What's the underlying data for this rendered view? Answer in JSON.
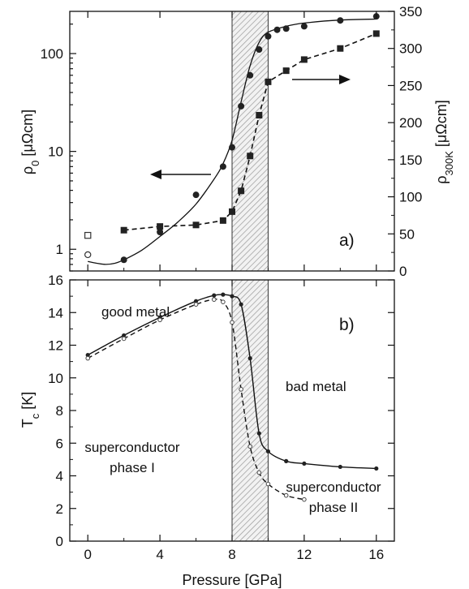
{
  "chart_data": [
    {
      "panel": "a)",
      "type": "scatter",
      "xlabel": "",
      "xlim": [
        -1,
        17
      ],
      "left_axis": {
        "label_main": "ρ",
        "label_sub": "0",
        "label_unit": " [μΩcm]",
        "scale": "log",
        "ylim": [
          0.6,
          270
        ],
        "ticks": [
          1,
          10,
          100
        ],
        "tick_labels": [
          "1",
          "10",
          "100"
        ]
      },
      "right_axis": {
        "label_main": "ρ",
        "label_sub": "300K",
        "label_unit": " [μΩcm]",
        "scale": "linear",
        "ylim": [
          0,
          350
        ],
        "ticks": [
          0,
          50,
          100,
          150,
          200,
          250,
          300,
          350
        ],
        "tick_labels": [
          "0",
          "50",
          "100",
          "150",
          "200",
          "250",
          "300",
          "350"
        ]
      },
      "shaded_region": [
        8,
        10
      ],
      "series": [
        {
          "axis": "left",
          "marker": "filled-circle",
          "line": "solid",
          "x": [
            2,
            4,
            6,
            7.5,
            8,
            8.5,
            9,
            9.5,
            10,
            10.5,
            11,
            12,
            14,
            16
          ],
          "y": [
            0.78,
            1.5,
            3.6,
            7,
            11,
            29,
            60,
            110,
            150,
            175,
            180,
            190,
            218,
            240
          ]
        },
        {
          "axis": "left",
          "marker": "open-circle",
          "line": "none",
          "x": [
            0
          ],
          "y": [
            0.88
          ]
        },
        {
          "axis": "right",
          "marker": "filled-square",
          "line": "dashed",
          "x": [
            2,
            4,
            6,
            7.5,
            8,
            8.5,
            9,
            9.5,
            10,
            11,
            12,
            14,
            16
          ],
          "y": [
            55,
            60,
            62,
            68,
            80,
            108,
            155,
            210,
            255,
            270,
            285,
            300,
            320
          ]
        },
        {
          "axis": "right",
          "marker": "open-square",
          "line": "none",
          "x": [
            0
          ],
          "y": [
            48
          ]
        }
      ],
      "fit_curve": {
        "axis": "left",
        "line": "solid",
        "x": [
          0,
          0.5,
          1,
          1.5,
          2,
          3,
          4,
          5,
          6,
          7,
          7.5,
          8,
          8.5,
          9,
          9.5,
          10,
          11,
          12,
          14,
          16
        ],
        "y": [
          0.75,
          0.72,
          0.7,
          0.72,
          0.78,
          0.98,
          1.35,
          1.9,
          2.9,
          5.2,
          7.5,
          13,
          32,
          75,
          130,
          165,
          190,
          205,
          220,
          225
        ]
      },
      "annotations": [
        "←",
        "→"
      ],
      "grid": false
    },
    {
      "panel": "b)",
      "type": "line",
      "xlabel": "Pressure [GPa]",
      "xlim": [
        -1,
        17
      ],
      "ylabel_main": "T",
      "ylabel_sub": "c",
      "ylabel_unit": " [K]",
      "ylim": [
        0,
        16
      ],
      "xticks": [
        0,
        4,
        8,
        12,
        16
      ],
      "xtick_labels": [
        "0",
        "4",
        "8",
        "12",
        "16"
      ],
      "yticks": [
        0,
        2,
        4,
        6,
        8,
        10,
        12,
        14,
        16
      ],
      "ytick_labels": [
        "0",
        "2",
        "4",
        "6",
        "8",
        "10",
        "12",
        "14",
        "16"
      ],
      "shaded_region": [
        8,
        10
      ],
      "series": [
        {
          "marker": "filled-circle",
          "line": "solid",
          "x": [
            0,
            2,
            4,
            6,
            7,
            7.5,
            8,
            8.5,
            9,
            9.5,
            10,
            11,
            12,
            14,
            16
          ],
          "y": [
            11.4,
            12.6,
            13.7,
            14.7,
            15.05,
            15.1,
            15.0,
            14.5,
            11.2,
            6.6,
            5.5,
            4.9,
            4.75,
            4.55,
            4.45
          ]
        },
        {
          "marker": "small-dot",
          "line": "dashed",
          "x": [
            0,
            2,
            4,
            6,
            7,
            7.5,
            8,
            8.5,
            9,
            9.5,
            10,
            11,
            12
          ],
          "y": [
            11.2,
            12.4,
            13.55,
            14.5,
            14.8,
            14.65,
            13.4,
            9.3,
            5.8,
            4.2,
            3.5,
            2.8,
            2.55
          ]
        }
      ],
      "region_labels": {
        "good_metal": "good metal",
        "bad_metal": "bad metal",
        "sc1_line1": "superconductor",
        "sc1_line2": "phase I",
        "sc2_line1": "superconductor",
        "sc2_line2": "phase II"
      },
      "grid": false
    }
  ]
}
